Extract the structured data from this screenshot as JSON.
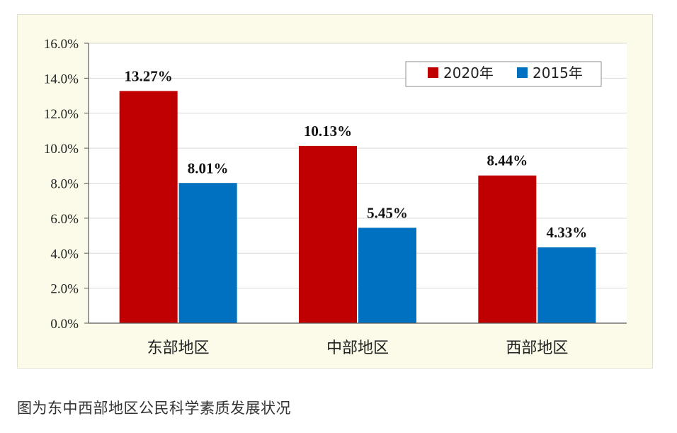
{
  "caption": "图为东中西部地区公民科学素质发展状况",
  "chart_data": {
    "type": "bar",
    "categories": [
      "东部地区",
      "中部地区",
      "西部地区"
    ],
    "series": [
      {
        "name": "2020年",
        "values": [
          13.27,
          10.13,
          8.44
        ],
        "labels": [
          "13.27%",
          "10.13%",
          "8.44%"
        ],
        "color": "#c00000"
      },
      {
        "name": "2015年",
        "values": [
          8.01,
          5.45,
          4.33
        ],
        "labels": [
          "8.01%",
          "5.45%",
          "4.33%"
        ],
        "color": "#0070c0"
      }
    ],
    "ylim": [
      0,
      16
    ],
    "yticks": [
      0,
      2,
      4,
      6,
      8,
      10,
      12,
      14,
      16
    ],
    "ytick_labels": [
      "0.0%",
      "2.0%",
      "4.0%",
      "6.0%",
      "8.0%",
      "10.0%",
      "12.0%",
      "14.0%",
      "16.0%"
    ],
    "grid": true,
    "legend_position": "top-right",
    "colors": {
      "frame_bg": "#fcfbe9",
      "plot_bg": "#ffffff",
      "grid": "#d9d9d9",
      "axis": "#595959"
    }
  }
}
